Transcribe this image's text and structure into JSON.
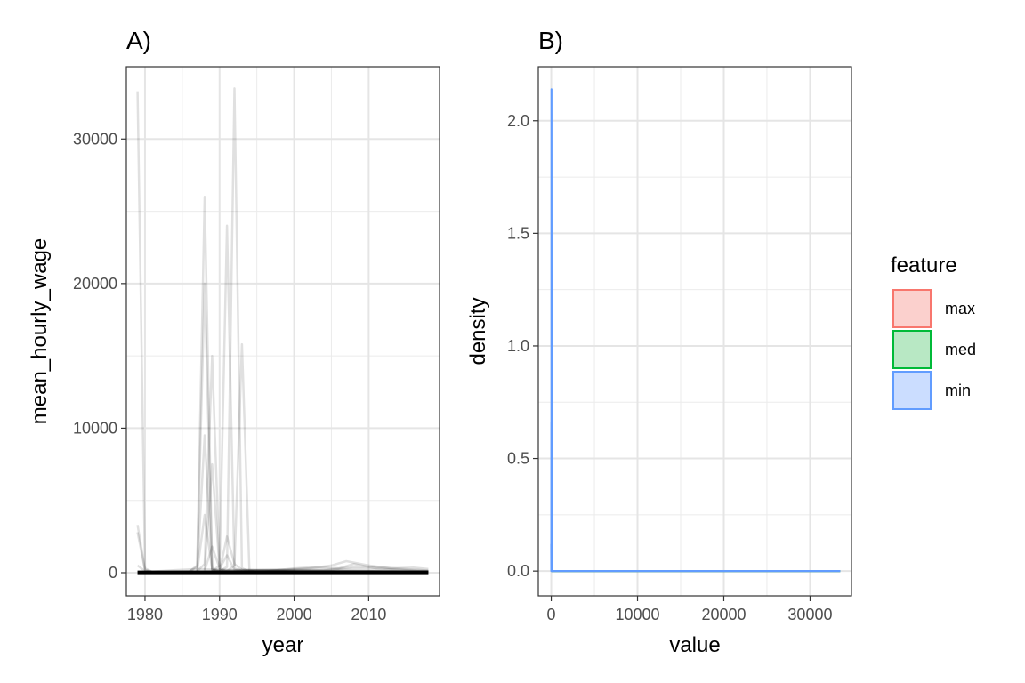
{
  "chart_data": [
    {
      "panel_tag": "A)",
      "type": "line",
      "xlabel": "year",
      "ylabel": "mean_hourly_wage",
      "xlim": [
        1977.5,
        2019.5
      ],
      "ylim": [
        -1600,
        35000
      ],
      "x_ticks": [
        1980,
        1990,
        2000,
        2010
      ],
      "y_ticks": [
        0,
        10000,
        20000,
        30000
      ],
      "x_tick_labels": [
        "1980",
        "1990",
        "2000",
        "2010"
      ],
      "y_tick_labels": [
        "0",
        "10000",
        "20000",
        "30000"
      ],
      "line_color": "#000000",
      "line_alpha": 0.12,
      "grid": true,
      "series": [
        {
          "points": [
            [
              1979,
              33300
            ],
            [
              1980,
              300
            ],
            [
              1981,
              50
            ],
            [
              2018,
              50
            ]
          ]
        },
        {
          "points": [
            [
              1979,
              3300
            ],
            [
              1980,
              200
            ],
            [
              1981,
              60
            ],
            [
              2018,
              60
            ]
          ]
        },
        {
          "points": [
            [
              1979,
              2800
            ],
            [
              1980,
              150
            ],
            [
              1981,
              40
            ],
            [
              2018,
              40
            ]
          ]
        },
        {
          "points": [
            [
              1979,
              500
            ],
            [
              1980,
              100
            ],
            [
              1981,
              30
            ],
            [
              2018,
              30
            ]
          ]
        },
        {
          "points": [
            [
              1986,
              100
            ],
            [
              1987,
              500
            ],
            [
              1988,
              26000
            ],
            [
              1989,
              300
            ],
            [
              1990,
              100
            ],
            [
              2018,
              80
            ]
          ]
        },
        {
          "points": [
            [
              1986,
              100
            ],
            [
              1987,
              400
            ],
            [
              1988,
              20000
            ],
            [
              1989,
              200
            ],
            [
              1990,
              80
            ],
            [
              2018,
              70
            ]
          ]
        },
        {
          "points": [
            [
              1987,
              100
            ],
            [
              1988,
              9500
            ],
            [
              1989,
              200
            ],
            [
              1990,
              60
            ],
            [
              2018,
              60
            ]
          ]
        },
        {
          "points": [
            [
              1987,
              100
            ],
            [
              1988,
              600
            ],
            [
              1989,
              15000
            ],
            [
              1990,
              300
            ],
            [
              1991,
              100
            ],
            [
              2018,
              80
            ]
          ]
        },
        {
          "points": [
            [
              1988,
              200
            ],
            [
              1989,
              7500
            ],
            [
              1990,
              200
            ],
            [
              1991,
              80
            ],
            [
              2018,
              60
            ]
          ]
        },
        {
          "points": [
            [
              1987,
              100
            ],
            [
              1988,
              4000
            ],
            [
              1989,
              200
            ],
            [
              2018,
              50
            ]
          ]
        },
        {
          "points": [
            [
              1989,
              100
            ],
            [
              1990,
              500
            ],
            [
              1991,
              24000
            ],
            [
              1992,
              300
            ],
            [
              1993,
              100
            ],
            [
              2018,
              90
            ]
          ]
        },
        {
          "points": [
            [
              1990,
              100
            ],
            [
              1991,
              400
            ],
            [
              1992,
              33500
            ],
            [
              1993,
              300
            ],
            [
              1994,
              100
            ],
            [
              2018,
              80
            ]
          ]
        },
        {
          "points": [
            [
              1991,
              100
            ],
            [
              1992,
              500
            ],
            [
              1993,
              15800
            ],
            [
              1994,
              150
            ],
            [
              1995,
              60
            ],
            [
              2018,
              60
            ]
          ]
        },
        {
          "points": [
            [
              1990,
              100
            ],
            [
              1991,
              2500
            ],
            [
              1992,
              600
            ],
            [
              1993,
              200
            ],
            [
              2018,
              70
            ]
          ]
        },
        {
          "points": [
            [
              1988,
              150
            ],
            [
              1989,
              1800
            ],
            [
              1990,
              300
            ],
            [
              1991,
              1200
            ],
            [
              1992,
              200
            ],
            [
              2018,
              50
            ]
          ]
        },
        {
          "points": [
            [
              1979,
              60
            ],
            [
              1996,
              80
            ],
            [
              2000,
              300
            ],
            [
              2003,
              400
            ],
            [
              2006,
              300
            ],
            [
              2008,
              600
            ],
            [
              2011,
              300
            ],
            [
              2014,
              200
            ],
            [
              2018,
              100
            ]
          ]
        },
        {
          "points": [
            [
              1979,
              40
            ],
            [
              1999,
              200
            ],
            [
              2002,
              300
            ],
            [
              2005,
              500
            ],
            [
              2007,
              800
            ],
            [
              2010,
              500
            ],
            [
              2013,
              300
            ],
            [
              2016,
              350
            ],
            [
              2018,
              250
            ]
          ]
        },
        {
          "points": [
            [
              1979,
              30
            ],
            [
              2004,
              150
            ],
            [
              2008,
              400
            ],
            [
              2012,
              350
            ],
            [
              2015,
              250
            ],
            [
              2018,
              150
            ]
          ]
        },
        {
          "points": [
            [
              1979,
              20
            ],
            [
              1984,
              180
            ],
            [
              1987,
              250
            ],
            [
              1993,
              150
            ],
            [
              2001,
              250
            ],
            [
              2009,
              250
            ],
            [
              2018,
              120
            ]
          ]
        }
      ]
    },
    {
      "panel_tag": "B)",
      "type": "line",
      "xlabel": "value",
      "ylabel": "density",
      "xlim": [
        -1500,
        34800
      ],
      "ylim": [
        -0.11,
        2.24
      ],
      "x_ticks": [
        0,
        10000,
        20000,
        30000
      ],
      "y_ticks": [
        0.0,
        0.5,
        1.0,
        1.5,
        2.0
      ],
      "x_tick_labels": [
        "0",
        "10000",
        "20000",
        "30000"
      ],
      "y_tick_labels": [
        "0.0",
        "0.5",
        "1.0",
        "1.5",
        "2.0"
      ],
      "grid": true,
      "series": [
        {
          "name": "max",
          "color": "#F8766D",
          "x": [
            20,
            33500
          ],
          "y": [
            0.0,
            0.0
          ]
        },
        {
          "name": "med",
          "color": "#00BA38",
          "x": [
            20,
            33500
          ],
          "y": [
            0.0,
            0.0
          ]
        },
        {
          "name": "min",
          "color": "#619CFF",
          "x": [
            0,
            5,
            15,
            25,
            30,
            50,
            80,
            120,
            150,
            200,
            33500
          ],
          "y": [
            0.12,
            0.0,
            0.66,
            0.0,
            2.14,
            0.3,
            0.05,
            0.02,
            0.0,
            0.0,
            0.0
          ]
        }
      ],
      "legend": {
        "title": "feature",
        "position": "right",
        "entries": [
          {
            "label": "max",
            "color": "#F8766D",
            "fill": "#FBD0CD"
          },
          {
            "label": "med",
            "color": "#00BA38",
            "fill": "#B8E8C4"
          },
          {
            "label": "min",
            "color": "#619CFF",
            "fill": "#CBDDFF"
          }
        ]
      }
    }
  ]
}
